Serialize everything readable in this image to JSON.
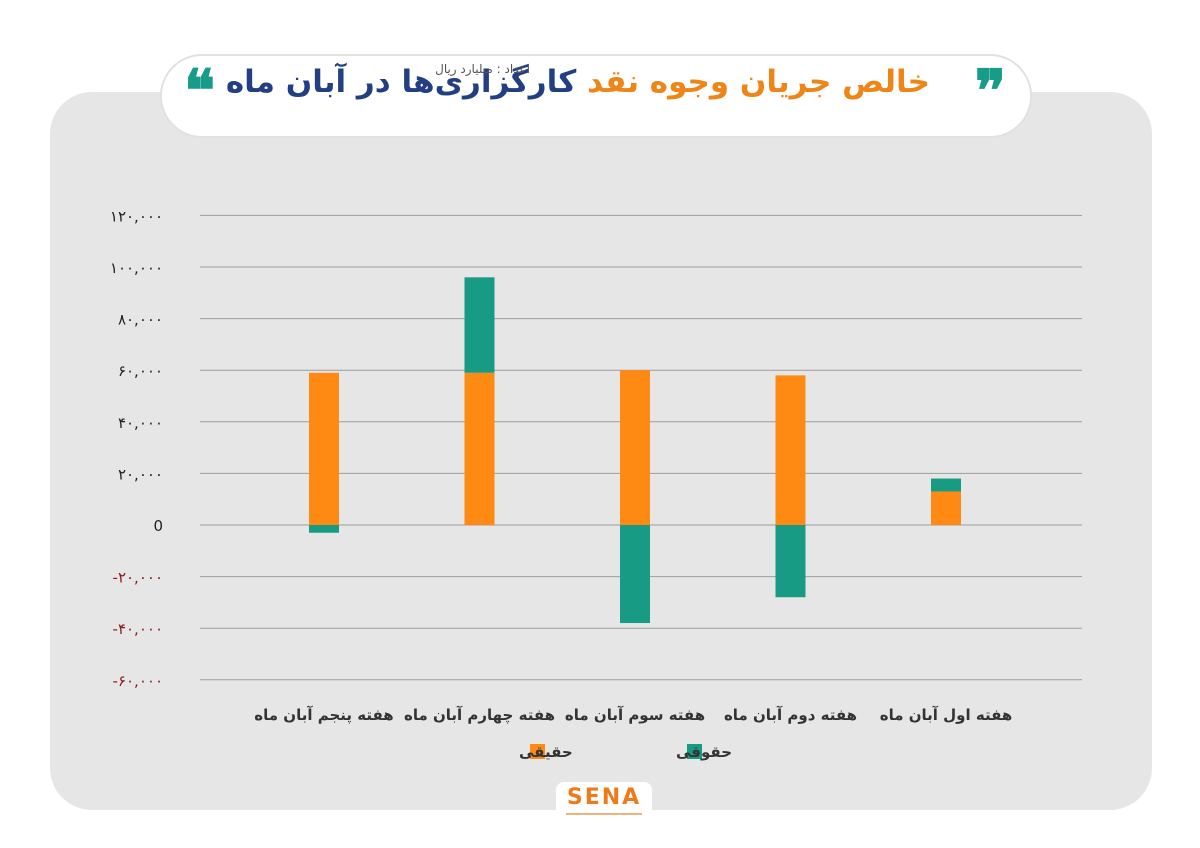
{
  "header": {
    "title_part1": "خالص جریان وجوه نقد",
    "title_part2": "کارگزاری‌ها در آبان ماه",
    "subtitle": "اعداد : میلیارد ریال",
    "quote_open": "❞",
    "quote_close": "❝"
  },
  "logo": {
    "text": "SENA"
  },
  "colors": {
    "haghighi": "#fe8a13",
    "hoghooghi": "#189b84",
    "negative_tick": "#8b1a1a",
    "positive_tick": "#222222",
    "grid": "#9c9c9c"
  },
  "chart_data": {
    "type": "bar",
    "stacked": true,
    "categories": [
      "هفته اول آبان ماه",
      "هفته دوم آبان ماه",
      "هفته سوم آبان ماه",
      "هفته چهارم آبان ماه",
      "هفته پنجم آبان ماه"
    ],
    "series": [
      {
        "name": "حقیقی",
        "values": [
          13000,
          58000,
          60000,
          59000,
          59000
        ]
      },
      {
        "name": "حقوقی",
        "values": [
          5000,
          -28000,
          -38000,
          37000,
          -3000
        ]
      }
    ],
    "ylim": [
      -60000,
      120000
    ],
    "yticks": [
      120000,
      100000,
      80000,
      60000,
      40000,
      20000,
      0,
      -20000,
      -40000,
      -60000
    ],
    "ytick_labels": [
      "۱۲۰,۰۰۰",
      "۱۰۰,۰۰۰",
      "۸۰,۰۰۰",
      "۶۰,۰۰۰",
      "۴۰,۰۰۰",
      "۲۰,۰۰۰",
      "0",
      "-۲۰,۰۰۰",
      "-۴۰,۰۰۰",
      "-۶۰,۰۰۰"
    ],
    "grid": true,
    "legend": [
      "حقیقی",
      "حقوقی"
    ],
    "legend_position": "bottom-center"
  }
}
